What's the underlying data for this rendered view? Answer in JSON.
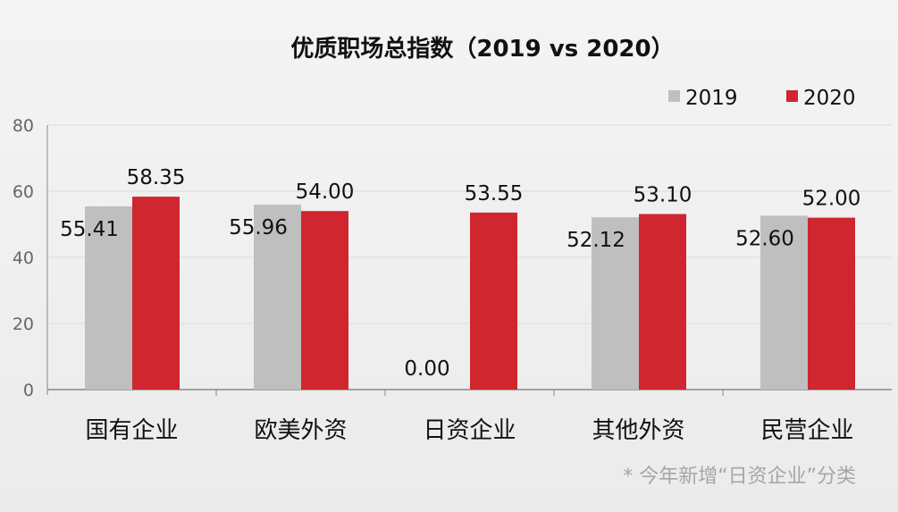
{
  "chart_data": {
    "type": "bar",
    "title": "优质职场总指数（2019 vs 2020）",
    "categories": [
      "国有企业",
      "欧美外资",
      "日资企业",
      "其他外资",
      "民营企业"
    ],
    "series": [
      {
        "name": "2019",
        "color": "#bfbfbf",
        "values": [
          55.41,
          55.96,
          0.0,
          52.12,
          52.6
        ],
        "labels": [
          "55.41",
          "55.96",
          "0.00",
          "52.12",
          "52.60"
        ]
      },
      {
        "name": "2020",
        "color": "#d0262f",
        "values": [
          58.35,
          54.0,
          53.55,
          53.1,
          52.0
        ],
        "labels": [
          "58.35",
          "54.00",
          "53.55",
          "53.10",
          "52.00"
        ]
      }
    ],
    "ylim": [
      0,
      80
    ],
    "yticks": [
      0,
      20,
      40,
      60,
      80
    ],
    "grid": true,
    "legend": "top-right",
    "xlabel": "",
    "ylabel": "",
    "footnote": "* 今年新增“日资企业”分类"
  }
}
